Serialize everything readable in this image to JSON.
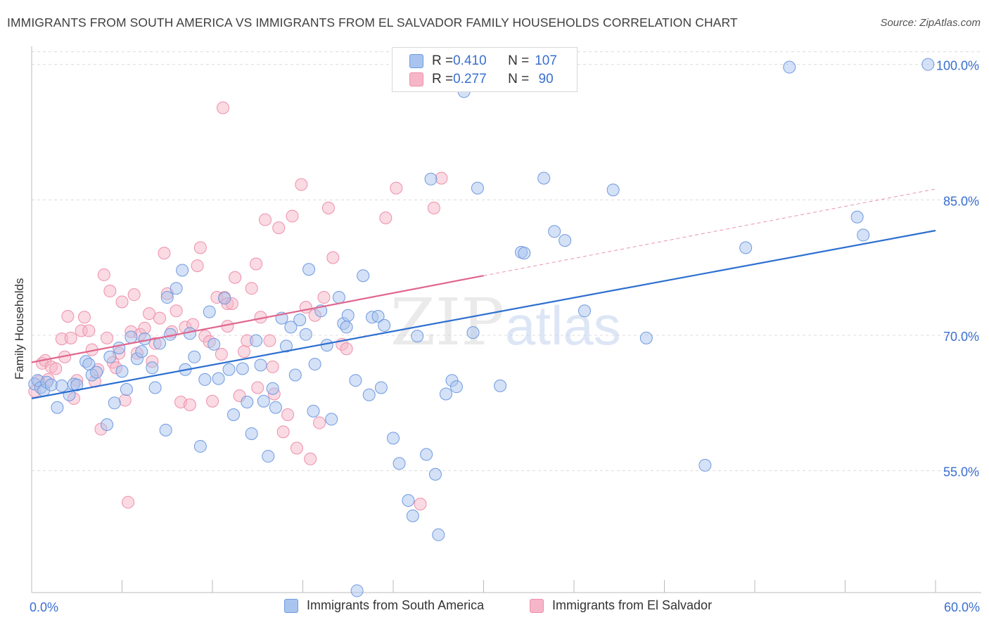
{
  "title": "IMMIGRANTS FROM SOUTH AMERICA VS IMMIGRANTS FROM EL SALVADOR FAMILY HOUSEHOLDS CORRELATION CHART",
  "source": "Source: ZipAtlas.com",
  "watermark": {
    "zip": "ZIP",
    "atlas": "atlas"
  },
  "colors": {
    "blue_fill": "#a9c4ee",
    "blue_stroke": "#6f9ae0",
    "blue_line": "#2d6fd0",
    "pink_fill": "#f6b6c8",
    "pink_stroke": "#ee8fab",
    "pink_line": "#e0668d",
    "tick_label": "#3a6fd0",
    "grid": "#dcdcdc"
  },
  "legend": {
    "rows": [
      {
        "r_label": "R = ",
        "r_value": "0.410",
        "n_label": "N = ",
        "n_value": "107"
      },
      {
        "r_label": "R = ",
        "r_value": "0.277",
        "n_label": "N = ",
        "n_value": " 90"
      }
    ]
  },
  "chart_data": {
    "type": "scatter",
    "title": "IMMIGRANTS FROM SOUTH AMERICA VS IMMIGRANTS FROM EL SALVADOR FAMILY HOUSEHOLDS CORRELATION CHART",
    "xlabel": "",
    "ylabel": "Family Households",
    "xlim": [
      0,
      60
    ],
    "ylim": [
      41.5,
      102
    ],
    "x_ticks": [
      0,
      6,
      12,
      18,
      24,
      30,
      36,
      42,
      48,
      54,
      60
    ],
    "x_tick_labels": {
      "0": "0.0%",
      "60": "60.0%"
    },
    "y_ticks": [
      55,
      70,
      85,
      100
    ],
    "y_tick_labels": [
      "55.0%",
      "70.0%",
      "85.0%",
      "100.0%"
    ],
    "grid": "horizontal dashed",
    "series": [
      {
        "name": "Immigrants from South America",
        "color": "blue",
        "R": 0.41,
        "N": 107,
        "trend": {
          "x": [
            0,
            60
          ],
          "y": [
            63.0,
            81.6
          ]
        },
        "points": [
          [
            0.2,
            64.6
          ],
          [
            0.4,
            65.0
          ],
          [
            0.6,
            64.2
          ],
          [
            0.8,
            63.9
          ],
          [
            1.0,
            64.8
          ],
          [
            1.3,
            64.5
          ],
          [
            1.7,
            62.0
          ],
          [
            2.0,
            64.4
          ],
          [
            2.5,
            63.4
          ],
          [
            2.8,
            64.6
          ],
          [
            3.0,
            64.5
          ],
          [
            3.6,
            67.1
          ],
          [
            3.8,
            66.8
          ],
          [
            4.0,
            65.6
          ],
          [
            4.3,
            65.9
          ],
          [
            5.0,
            60.1
          ],
          [
            5.2,
            67.6
          ],
          [
            5.5,
            62.5
          ],
          [
            5.8,
            68.6
          ],
          [
            6.0,
            66.0
          ],
          [
            6.3,
            64.0
          ],
          [
            6.6,
            69.8
          ],
          [
            7.0,
            67.4
          ],
          [
            7.3,
            68.2
          ],
          [
            7.5,
            69.6
          ],
          [
            8.0,
            66.4
          ],
          [
            8.2,
            64.2
          ],
          [
            8.5,
            69.1
          ],
          [
            8.9,
            59.5
          ],
          [
            9.0,
            74.2
          ],
          [
            9.2,
            70.1
          ],
          [
            9.6,
            75.2
          ],
          [
            10.0,
            77.2
          ],
          [
            10.2,
            66.2
          ],
          [
            10.5,
            70.2
          ],
          [
            10.8,
            67.6
          ],
          [
            11.2,
            57.7
          ],
          [
            11.5,
            65.1
          ],
          [
            11.8,
            72.6
          ],
          [
            12.1,
            69.0
          ],
          [
            12.4,
            65.2
          ],
          [
            12.8,
            74.1
          ],
          [
            13.1,
            66.2
          ],
          [
            13.4,
            61.2
          ],
          [
            14.0,
            66.3
          ],
          [
            14.3,
            62.6
          ],
          [
            14.6,
            59.1
          ],
          [
            14.9,
            69.4
          ],
          [
            15.2,
            66.7
          ],
          [
            15.4,
            62.7
          ],
          [
            15.7,
            56.6
          ],
          [
            16.0,
            64.1
          ],
          [
            16.2,
            62.0
          ],
          [
            16.6,
            71.9
          ],
          [
            16.9,
            68.8
          ],
          [
            17.2,
            70.9
          ],
          [
            17.5,
            65.6
          ],
          [
            17.8,
            71.7
          ],
          [
            18.2,
            70.1
          ],
          [
            18.4,
            77.3
          ],
          [
            18.7,
            61.6
          ],
          [
            18.8,
            66.8
          ],
          [
            19.2,
            72.7
          ],
          [
            19.6,
            68.9
          ],
          [
            19.9,
            60.7
          ],
          [
            20.4,
            74.2
          ],
          [
            20.7,
            71.3
          ],
          [
            20.9,
            70.9
          ],
          [
            21.0,
            72.2
          ],
          [
            21.5,
            65.0
          ],
          [
            22.0,
            76.6
          ],
          [
            22.4,
            63.4
          ],
          [
            22.6,
            72.0
          ],
          [
            23.0,
            72.1
          ],
          [
            23.2,
            64.2
          ],
          [
            23.4,
            71.1
          ],
          [
            24.0,
            58.6
          ],
          [
            24.4,
            55.8
          ],
          [
            25.0,
            51.7
          ],
          [
            25.3,
            50.0
          ],
          [
            25.6,
            69.9
          ],
          [
            26.2,
            56.8
          ],
          [
            26.8,
            54.6
          ],
          [
            26.5,
            87.3
          ],
          [
            27.0,
            47.9
          ],
          [
            27.5,
            63.5
          ],
          [
            27.9,
            65.0
          ],
          [
            28.7,
            97.0
          ],
          [
            29.3,
            70.3
          ],
          [
            29.6,
            86.3
          ],
          [
            31.1,
            64.4
          ],
          [
            32.5,
            79.2
          ],
          [
            32.7,
            79.1
          ],
          [
            34.0,
            87.4
          ],
          [
            34.7,
            81.5
          ],
          [
            35.4,
            80.5
          ],
          [
            36.7,
            72.7
          ],
          [
            38.6,
            86.1
          ],
          [
            40.8,
            69.7
          ],
          [
            44.7,
            55.6
          ],
          [
            47.4,
            79.7
          ],
          [
            50.3,
            99.7
          ],
          [
            54.8,
            83.1
          ],
          [
            55.2,
            81.1
          ],
          [
            59.5,
            100.0
          ],
          [
            21.6,
            41.7
          ],
          [
            28.2,
            64.3
          ]
        ]
      },
      {
        "name": "Immigrants from El Salvador",
        "color": "pink",
        "R": 0.277,
        "N": 90,
        "trend": {
          "x": [
            0,
            30
          ],
          "y": [
            67.0,
            76.6
          ]
        },
        "trend_extension": {
          "x": [
            30,
            60
          ],
          "y": [
            76.6,
            86.2
          ]
        },
        "points": [
          [
            0.2,
            63.8
          ],
          [
            0.5,
            64.9
          ],
          [
            0.7,
            66.9
          ],
          [
            0.9,
            67.2
          ],
          [
            1.1,
            65.1
          ],
          [
            1.3,
            66.5
          ],
          [
            1.6,
            66.3
          ],
          [
            2.0,
            69.6
          ],
          [
            2.2,
            67.6
          ],
          [
            2.4,
            72.1
          ],
          [
            2.6,
            69.7
          ],
          [
            2.8,
            63.0
          ],
          [
            3.0,
            65.0
          ],
          [
            3.3,
            70.5
          ],
          [
            3.5,
            72.0
          ],
          [
            3.8,
            70.5
          ],
          [
            4.0,
            68.4
          ],
          [
            4.2,
            64.9
          ],
          [
            4.4,
            66.2
          ],
          [
            4.6,
            59.6
          ],
          [
            4.8,
            76.7
          ],
          [
            5.0,
            69.7
          ],
          [
            5.2,
            74.9
          ],
          [
            5.4,
            67.0
          ],
          [
            5.6,
            66.4
          ],
          [
            5.8,
            68.0
          ],
          [
            6.0,
            73.7
          ],
          [
            6.2,
            62.8
          ],
          [
            6.4,
            51.5
          ],
          [
            6.6,
            70.4
          ],
          [
            6.8,
            74.5
          ],
          [
            7.0,
            68.0
          ],
          [
            7.2,
            70.1
          ],
          [
            7.5,
            70.8
          ],
          [
            7.8,
            72.4
          ],
          [
            8.0,
            67.1
          ],
          [
            8.2,
            69.1
          ],
          [
            8.5,
            71.9
          ],
          [
            8.8,
            79.1
          ],
          [
            9.0,
            74.6
          ],
          [
            9.3,
            70.4
          ],
          [
            9.6,
            72.7
          ],
          [
            9.9,
            62.6
          ],
          [
            10.2,
            70.9
          ],
          [
            10.5,
            62.3
          ],
          [
            10.7,
            71.2
          ],
          [
            11.0,
            77.7
          ],
          [
            11.2,
            79.7
          ],
          [
            11.5,
            69.9
          ],
          [
            11.8,
            69.3
          ],
          [
            12.0,
            62.7
          ],
          [
            12.3,
            74.2
          ],
          [
            12.6,
            67.9
          ],
          [
            12.8,
            74.2
          ],
          [
            13.0,
            73.5
          ],
          [
            13.3,
            73.5
          ],
          [
            13.5,
            76.4
          ],
          [
            13.8,
            63.3
          ],
          [
            14.1,
            68.2
          ],
          [
            14.3,
            69.4
          ],
          [
            14.6,
            75.2
          ],
          [
            14.9,
            77.9
          ],
          [
            15.2,
            72.0
          ],
          [
            15.5,
            82.8
          ],
          [
            15.8,
            69.4
          ],
          [
            16.1,
            63.5
          ],
          [
            16.4,
            81.9
          ],
          [
            16.7,
            59.3
          ],
          [
            17.0,
            61.2
          ],
          [
            17.3,
            83.2
          ],
          [
            17.6,
            57.5
          ],
          [
            17.9,
            86.7
          ],
          [
            18.2,
            73.1
          ],
          [
            18.5,
            56.3
          ],
          [
            18.8,
            72.2
          ],
          [
            19.1,
            60.3
          ],
          [
            19.4,
            74.2
          ],
          [
            19.7,
            84.1
          ],
          [
            20.0,
            78.6
          ],
          [
            20.6,
            69.0
          ],
          [
            20.9,
            68.5
          ],
          [
            12.7,
            95.2
          ],
          [
            23.5,
            83.0
          ],
          [
            24.2,
            86.3
          ],
          [
            25.8,
            51.3
          ],
          [
            26.7,
            84.1
          ],
          [
            27.2,
            87.4
          ],
          [
            15.0,
            64.2
          ],
          [
            13.0,
            71.0
          ],
          [
            16.0,
            66.5
          ]
        ]
      }
    ]
  },
  "bottom_legend": [
    {
      "label": "Immigrants from South America"
    },
    {
      "label": "Immigrants from El Salvador"
    }
  ]
}
